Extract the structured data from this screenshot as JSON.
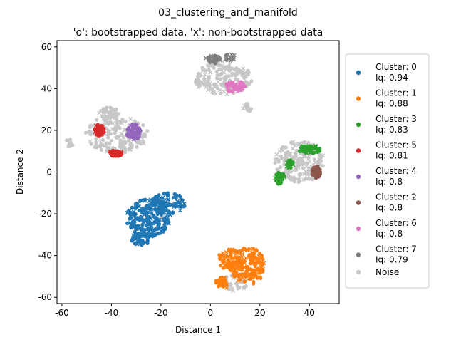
{
  "figure": {
    "suptitle": "03_clustering_and_manifold"
  },
  "chart_data": {
    "type": "scatter",
    "title": "'o': bootstrapped data, 'x': non-bootstrapped data",
    "xlabel": "Distance 1",
    "ylabel": "Distance 2",
    "xlim": [
      -62,
      52
    ],
    "ylim": [
      -63,
      63
    ],
    "xticks": [
      -60,
      -40,
      -20,
      0,
      20,
      40
    ],
    "yticks": [
      -60,
      -40,
      -20,
      0,
      20,
      40,
      60
    ],
    "grid": false,
    "legend_position": "right, outside plot",
    "series": [
      {
        "key": "cluster-0",
        "label": "Cluster: 0",
        "iq": "Iq: 0.94",
        "color": "#1f77b4",
        "regions": [
          {
            "cx": -25,
            "cy": -22,
            "rx": 9,
            "ry": 9,
            "n": 220
          },
          {
            "cx": -17,
            "cy": -15,
            "rx": 7,
            "ry": 5,
            "n": 90
          },
          {
            "cx": -28,
            "cy": -32,
            "rx": 4,
            "ry": 3,
            "n": 40
          }
        ]
      },
      {
        "key": "cluster-1",
        "label": "Cluster: 1",
        "iq": "Iq: 0.88",
        "color": "#ff7f0e",
        "regions": [
          {
            "cx": 15,
            "cy": -45,
            "rx": 7,
            "ry": 9,
            "n": 160
          },
          {
            "cx": 8,
            "cy": -42,
            "rx": 5,
            "ry": 5,
            "n": 60
          },
          {
            "cx": 5,
            "cy": -53,
            "rx": 3,
            "ry": 3,
            "n": 30
          }
        ]
      },
      {
        "key": "cluster-3",
        "label": "Cluster: 3",
        "iq": "Iq: 0.83",
        "color": "#2ca02c",
        "regions": [
          {
            "cx": 28,
            "cy": -3,
            "rx": 2,
            "ry": 3,
            "n": 40
          },
          {
            "cx": 32,
            "cy": 4,
            "rx": 1.5,
            "ry": 2,
            "n": 25
          },
          {
            "cx": 40,
            "cy": 11,
            "rx": 5,
            "ry": 2,
            "n": 55
          }
        ]
      },
      {
        "key": "cluster-5",
        "label": "Cluster: 5",
        "iq": "Iq: 0.81",
        "color": "#d62728",
        "regions": [
          {
            "cx": -45,
            "cy": 20,
            "rx": 2,
            "ry": 3,
            "n": 45
          },
          {
            "cx": -38,
            "cy": 9,
            "rx": 3,
            "ry": 1.5,
            "n": 30
          }
        ]
      },
      {
        "key": "cluster-4",
        "label": "Cluster: 4",
        "iq": "Iq: 0.8",
        "color": "#9467bd",
        "regions": [
          {
            "cx": -31,
            "cy": 19,
            "rx": 3,
            "ry": 4,
            "n": 55
          }
        ]
      },
      {
        "key": "cluster-2",
        "label": "Cluster: 2",
        "iq": "Iq: 0.8",
        "color": "#8c564b",
        "regions": [
          {
            "cx": 43,
            "cy": 0,
            "rx": 2,
            "ry": 3,
            "n": 35
          }
        ]
      },
      {
        "key": "cluster-6",
        "label": "Cluster: 6",
        "iq": "Iq: 0.8",
        "color": "#e377c2",
        "regions": [
          {
            "cx": 10,
            "cy": 41,
            "rx": 4,
            "ry": 3,
            "n": 50
          }
        ]
      },
      {
        "key": "cluster-7",
        "label": "Cluster: 7",
        "iq": "Iq: 0.79",
        "color": "#7f7f7f",
        "regions": [
          {
            "cx": 1,
            "cy": 54,
            "rx": 3,
            "ry": 2,
            "n": 30
          },
          {
            "cx": 8,
            "cy": 55,
            "rx": 2,
            "ry": 2,
            "n": 15
          }
        ]
      },
      {
        "key": "noise",
        "label": "Noise",
        "iq": "",
        "color": "#c7c7c7",
        "regions": [
          {
            "cx": -38,
            "cy": 18,
            "rx": 13,
            "ry": 9,
            "n": 180
          },
          {
            "cx": -41,
            "cy": 28,
            "rx": 4,
            "ry": 3,
            "n": 40
          },
          {
            "cx": -57,
            "cy": 14,
            "rx": 2,
            "ry": 2,
            "n": 10
          },
          {
            "cx": 5,
            "cy": 45,
            "rx": 12,
            "ry": 8,
            "n": 170
          },
          {
            "cx": 15,
            "cy": 31,
            "rx": 2,
            "ry": 2,
            "n": 12
          },
          {
            "cx": 36,
            "cy": 5,
            "rx": 10,
            "ry": 10,
            "n": 180
          },
          {
            "cx": 10,
            "cy": -53,
            "rx": 5,
            "ry": 4,
            "n": 30
          },
          {
            "cx": -22,
            "cy": -18,
            "rx": 5,
            "ry": 5,
            "n": 30
          }
        ]
      }
    ]
  }
}
